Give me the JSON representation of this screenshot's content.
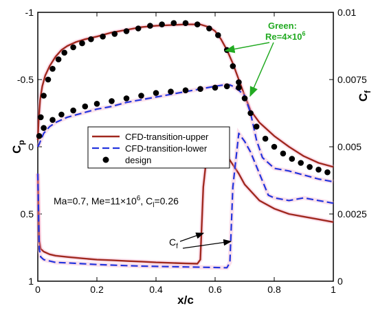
{
  "chart_data": {
    "type": "line",
    "xlabel": "x/c",
    "ylabel_left": "C",
    "ylabel_left_sub": "p",
    "ylabel_right": "C",
    "ylabel_right_sub": "f",
    "xlim": [
      0,
      1
    ],
    "ylim_left": [
      1,
      -1
    ],
    "ylim_right": [
      0,
      0.01
    ],
    "xticks": [
      "0",
      "0.2",
      "0.4",
      "0.6",
      "0.8",
      "1"
    ],
    "xtick_values": [
      0,
      0.2,
      0.4,
      0.6,
      0.8,
      1
    ],
    "yticks_left": [
      "-1",
      "-0.5",
      "0",
      "0.5",
      "1"
    ],
    "ytick_values_left": [
      -1,
      -0.5,
      0,
      0.5,
      1
    ],
    "yticks_right": [
      "0.01",
      "0.0075",
      "0.005",
      "0.0025",
      "0"
    ],
    "ytick_values_right": [
      0.01,
      0.0075,
      0.005,
      0.0025,
      0
    ],
    "grid": false,
    "legend_position": "center",
    "legend": [
      {
        "label": "CFD-transition-upper",
        "style": "solid",
        "color": "#a0281e"
      },
      {
        "label": "CFD-transition-lower",
        "style": "dashed",
        "color": "#2233dd"
      },
      {
        "label": "design",
        "style": "dot",
        "color": "#000000"
      }
    ],
    "annotations": {
      "conditions": {
        "main": "Ma=0.7, Me=11×10",
        "sup": "6",
        "tail": ", C",
        "sub": "l",
        "end": "=0.26"
      },
      "green_line1": "Green:",
      "green_line2": "Re=4×10",
      "green_sup": "6",
      "cf_label": "C",
      "cf_sub": "f"
    },
    "series": [
      {
        "name": "CFD-transition-upper",
        "axis": "left",
        "x": [
          0,
          0.003,
          0.008,
          0.015,
          0.025,
          0.04,
          0.06,
          0.08,
          0.1,
          0.13,
          0.16,
          0.2,
          0.25,
          0.3,
          0.35,
          0.4,
          0.45,
          0.5,
          0.55,
          0.58,
          0.6,
          0.62,
          0.64,
          0.66,
          0.68,
          0.7,
          0.72,
          0.75,
          0.8,
          0.85,
          0.9,
          0.95,
          1.0
        ],
        "y": [
          -0.05,
          -0.2,
          -0.35,
          -0.45,
          -0.53,
          -0.6,
          -0.67,
          -0.72,
          -0.75,
          -0.78,
          -0.8,
          -0.82,
          -0.85,
          -0.87,
          -0.89,
          -0.9,
          -0.905,
          -0.91,
          -0.91,
          -0.89,
          -0.86,
          -0.8,
          -0.72,
          -0.62,
          -0.5,
          -0.38,
          -0.27,
          -0.18,
          -0.08,
          0.0,
          0.07,
          0.12,
          0.15
        ]
      },
      {
        "name": "CFD-transition-lower",
        "axis": "left",
        "x": [
          0,
          0.005,
          0.01,
          0.02,
          0.04,
          0.06,
          0.1,
          0.15,
          0.2,
          0.25,
          0.3,
          0.35,
          0.4,
          0.45,
          0.5,
          0.55,
          0.6,
          0.63,
          0.65,
          0.66,
          0.68,
          0.7,
          0.72,
          0.74,
          0.76,
          0.8,
          0.85,
          0.9,
          0.95,
          1.0
        ],
        "y": [
          0.0,
          -0.02,
          -0.05,
          -0.1,
          -0.15,
          -0.18,
          -0.22,
          -0.25,
          -0.28,
          -0.3,
          -0.33,
          -0.35,
          -0.37,
          -0.39,
          -0.41,
          -0.43,
          -0.45,
          -0.46,
          -0.46,
          -0.45,
          -0.42,
          -0.38,
          -0.25,
          -0.05,
          0.08,
          0.16,
          0.18,
          0.21,
          0.24,
          0.26
        ]
      },
      {
        "name": "design",
        "axis": "left",
        "type": "scatter",
        "x": [
          0.005,
          0.01,
          0.02,
          0.035,
          0.05,
          0.07,
          0.09,
          0.12,
          0.15,
          0.18,
          0.22,
          0.26,
          0.3,
          0.34,
          0.38,
          0.42,
          0.46,
          0.5,
          0.54,
          0.58,
          0.61,
          0.64,
          0.66,
          0.68,
          0.7,
          0.72,
          0.74,
          0.77,
          0.8,
          0.83,
          0.86,
          0.89,
          0.92,
          0.95,
          0.98,
          0.02,
          0.05,
          0.08,
          0.12,
          0.16,
          0.2,
          0.25,
          0.3,
          0.35,
          0.4,
          0.45,
          0.5,
          0.55,
          0.6,
          0.64,
          0.68
        ],
        "y": [
          -0.08,
          -0.22,
          -0.38,
          -0.5,
          -0.58,
          -0.65,
          -0.7,
          -0.74,
          -0.77,
          -0.8,
          -0.82,
          -0.84,
          -0.86,
          -0.88,
          -0.9,
          -0.91,
          -0.92,
          -0.92,
          -0.91,
          -0.88,
          -0.83,
          -0.72,
          -0.6,
          -0.48,
          -0.36,
          -0.25,
          -0.15,
          -0.06,
          0.0,
          0.05,
          0.09,
          0.12,
          0.15,
          0.17,
          0.19,
          -0.14,
          -0.2,
          -0.24,
          -0.27,
          -0.3,
          -0.32,
          -0.34,
          -0.36,
          -0.38,
          -0.4,
          -0.41,
          -0.42,
          -0.43,
          -0.44,
          -0.45,
          -0.44
        ]
      },
      {
        "name": "Cf-upper",
        "axis": "right",
        "x": [
          0,
          0.005,
          0.01,
          0.02,
          0.04,
          0.06,
          0.1,
          0.15,
          0.2,
          0.25,
          0.3,
          0.35,
          0.4,
          0.45,
          0.5,
          0.54,
          0.55,
          0.56,
          0.58,
          0.6,
          0.62,
          0.65,
          0.68,
          0.7,
          0.75,
          0.8,
          0.85,
          0.9,
          0.95,
          1.0
        ],
        "y": [
          0.004,
          0.0015,
          0.0012,
          0.0011,
          0.001,
          0.00095,
          0.0009,
          0.00085,
          0.0008,
          0.00078,
          0.00075,
          0.00073,
          0.0007,
          0.00068,
          0.00066,
          0.00065,
          0.0008,
          0.0035,
          0.0055,
          0.0053,
          0.005,
          0.0045,
          0.004,
          0.0036,
          0.003,
          0.0027,
          0.0025,
          0.0024,
          0.0023,
          0.0022
        ]
      },
      {
        "name": "Cf-lower",
        "axis": "right",
        "x": [
          0,
          0.005,
          0.01,
          0.02,
          0.04,
          0.06,
          0.1,
          0.15,
          0.2,
          0.25,
          0.3,
          0.35,
          0.4,
          0.45,
          0.5,
          0.55,
          0.6,
          0.64,
          0.65,
          0.66,
          0.68,
          0.7,
          0.72,
          0.75,
          0.78,
          0.8,
          0.85,
          0.9,
          0.95,
          1.0
        ],
        "y": [
          0.004,
          0.0012,
          0.0009,
          0.0008,
          0.00075,
          0.0007,
          0.00068,
          0.00065,
          0.00062,
          0.0006,
          0.00058,
          0.00056,
          0.00055,
          0.00054,
          0.00053,
          0.00052,
          0.00051,
          0.0005,
          0.0007,
          0.0035,
          0.0055,
          0.0052,
          0.0048,
          0.004,
          0.0032,
          0.0031,
          0.003,
          0.0031,
          0.003,
          0.0029
        ]
      }
    ]
  }
}
